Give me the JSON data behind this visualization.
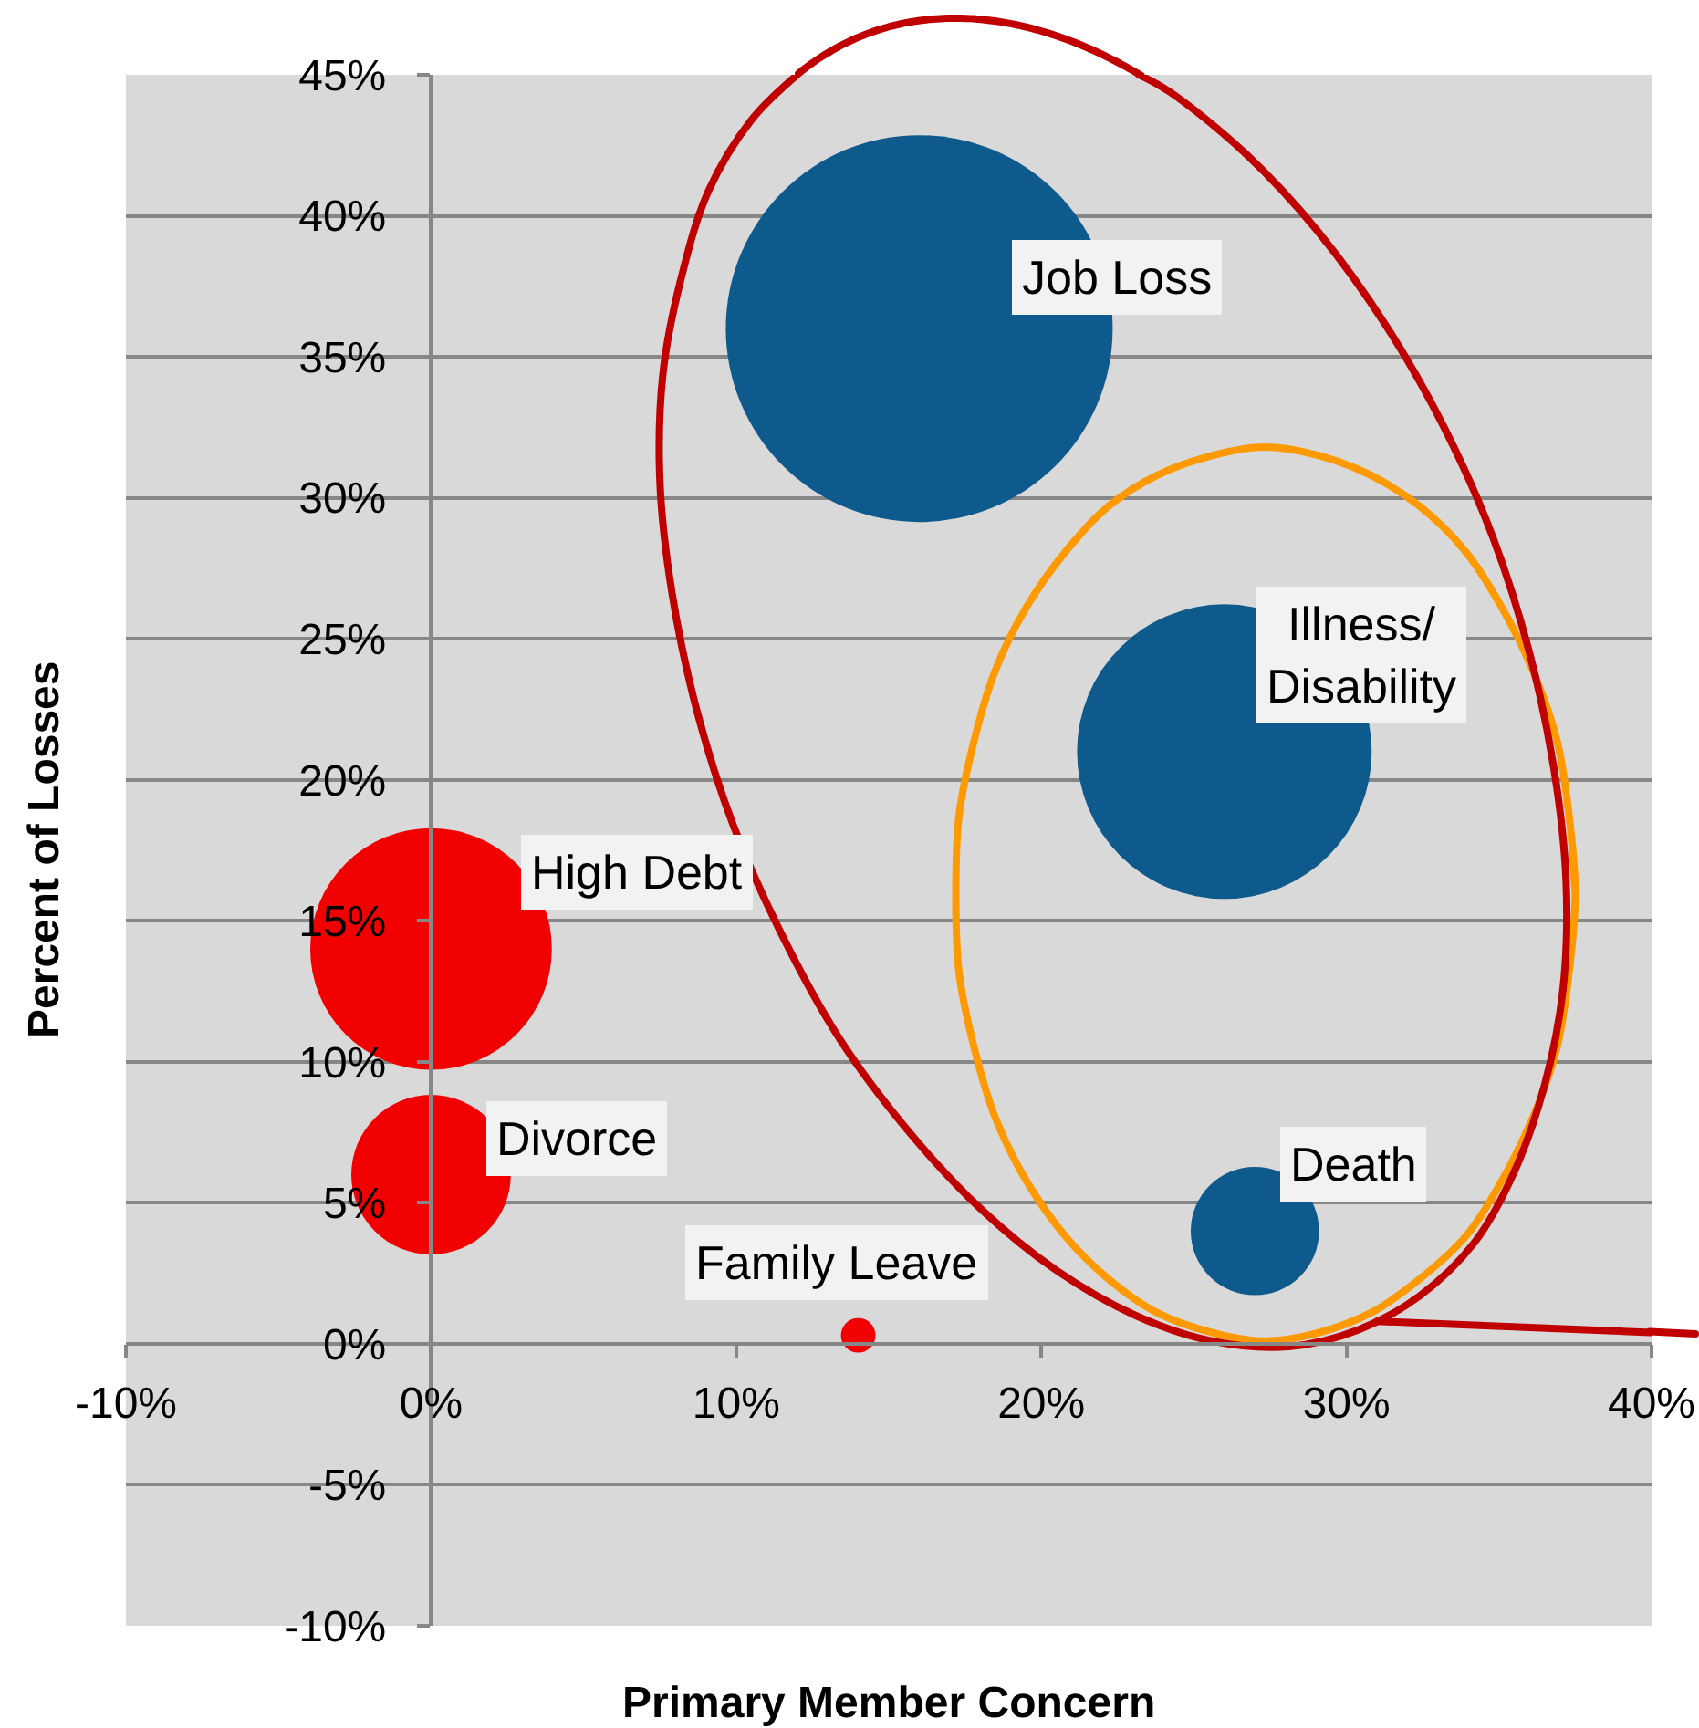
{
  "chart_data": {
    "type": "bubble",
    "xlabel": "Primary Member Concern",
    "ylabel": "Percent of Losses",
    "series": [
      {
        "color": "#f00000",
        "x": [
          0,
          0,
          14
        ],
        "values": [
          14,
          6,
          0.3
        ],
        "sizes": [
          0.39,
          0.17,
          0.008
        ]
      },
      {
        "color": "#0f5a8c",
        "x": [
          16,
          26,
          27
        ],
        "values": [
          36,
          21,
          4
        ],
        "sizes": [
          1,
          0.58,
          0.11
        ]
      },
      {
        "type": "line",
        "color": "#ff9900",
        "x": [
          37.5,
          37.3,
          36.9,
          36.1,
          35.1,
          33.9,
          32.4,
          30.8,
          29.1,
          27.3,
          25.6,
          23.8,
          22.2,
          20.8,
          19.5,
          18.5,
          17.8,
          17.3,
          17.2,
          17.3,
          17.8,
          18.5,
          19.5,
          20.8,
          22.2,
          23.8,
          25.6,
          27.3,
          29.1,
          30.8,
          32.4,
          33.9,
          35.1,
          36.1,
          36.9,
          37.3,
          37.5,
          37.3
        ],
        "values": [
          16.0,
          18.7,
          21.4,
          23.9,
          26.1,
          28.1,
          29.7,
          30.8,
          31.5,
          31.8,
          31.5,
          30.8,
          29.7,
          28.1,
          26.1,
          23.9,
          21.4,
          18.7,
          16.0,
          13.2,
          10.5,
          8.0,
          5.8,
          3.8,
          2.3,
          1.1,
          0.4,
          0.1,
          0.4,
          1.1,
          2.3,
          3.8,
          5.8,
          8.0,
          10.5,
          13.2,
          16.0,
          18.7
        ]
      },
      {
        "type": "line",
        "color": "#c00000",
        "x": [
          12.0,
          10.5,
          9.1,
          8.2,
          7.6,
          7.5,
          7.9,
          8.7,
          9.9,
          11.5,
          13.4,
          15.6,
          18.0,
          20.5,
          23.1,
          25.6,
          28.1,
          30.4,
          32.4,
          34.2,
          35.5,
          36.5,
          37.1,
          37.2,
          36.8,
          36.0,
          34.8,
          33.2,
          31.3,
          29.1,
          26.7,
          24.2,
          23.2
        ],
        "values": [
          45,
          43.4,
          40.9,
          37.8,
          34.4,
          30.6,
          26.6,
          22.5,
          18.4,
          14.5,
          10.8,
          7.6,
          4.8,
          2.6,
          1.0,
          0.1,
          -0.1,
          0.5,
          1.7,
          3.6,
          6.1,
          9.2,
          12.6,
          16.4,
          20.4,
          24.5,
          28.6,
          32.5,
          36.1,
          39.4,
          42.2,
          44.4,
          45
        ]
      },
      {
        "type": "line",
        "color": "#c00000",
        "x": [
          31.0,
          40
        ],
        "values": [
          0.8,
          0.4
        ]
      }
    ],
    "annotations": [
      {
        "text": "High Debt",
        "x": 0,
        "y": 14
      },
      {
        "text": "Divorce",
        "x": 0,
        "y": 6
      },
      {
        "text": "Family Leave",
        "x": 14,
        "y": 0.3
      },
      {
        "text": "Job Loss",
        "x": 16,
        "y": 36
      },
      {
        "text": "Illness/ Disability",
        "x": 26,
        "y": 21
      },
      {
        "text": "Death",
        "x": 27,
        "y": 4
      }
    ],
    "xlim": [
      -10,
      40
    ],
    "xticks": [
      {
        "value": -10,
        "label": "-10%"
      },
      {
        "value": 0,
        "label": "0%"
      },
      {
        "value": 10,
        "label": "10%"
      },
      {
        "value": 20,
        "label": "20%"
      },
      {
        "value": 30,
        "label": "30%"
      },
      {
        "value": 40,
        "label": "40%"
      }
    ],
    "ylim": [
      -10,
      45
    ],
    "yticks": [
      {
        "value": -10,
        "label": "-10%"
      },
      {
        "value": -5,
        "label": "-5%"
      },
      {
        "value": 0,
        "label": "0%"
      },
      {
        "value": 5,
        "label": "5%"
      },
      {
        "value": 10,
        "label": "10%"
      },
      {
        "value": 15,
        "label": "15%"
      },
      {
        "value": 20,
        "label": "20%"
      },
      {
        "value": 25,
        "label": "25%"
      },
      {
        "value": 30,
        "label": "30%"
      },
      {
        "value": 35,
        "label": "35%"
      },
      {
        "value": 40,
        "label": "40%"
      },
      {
        "value": 45,
        "label": "45%"
      }
    ],
    "grid": "y"
  }
}
